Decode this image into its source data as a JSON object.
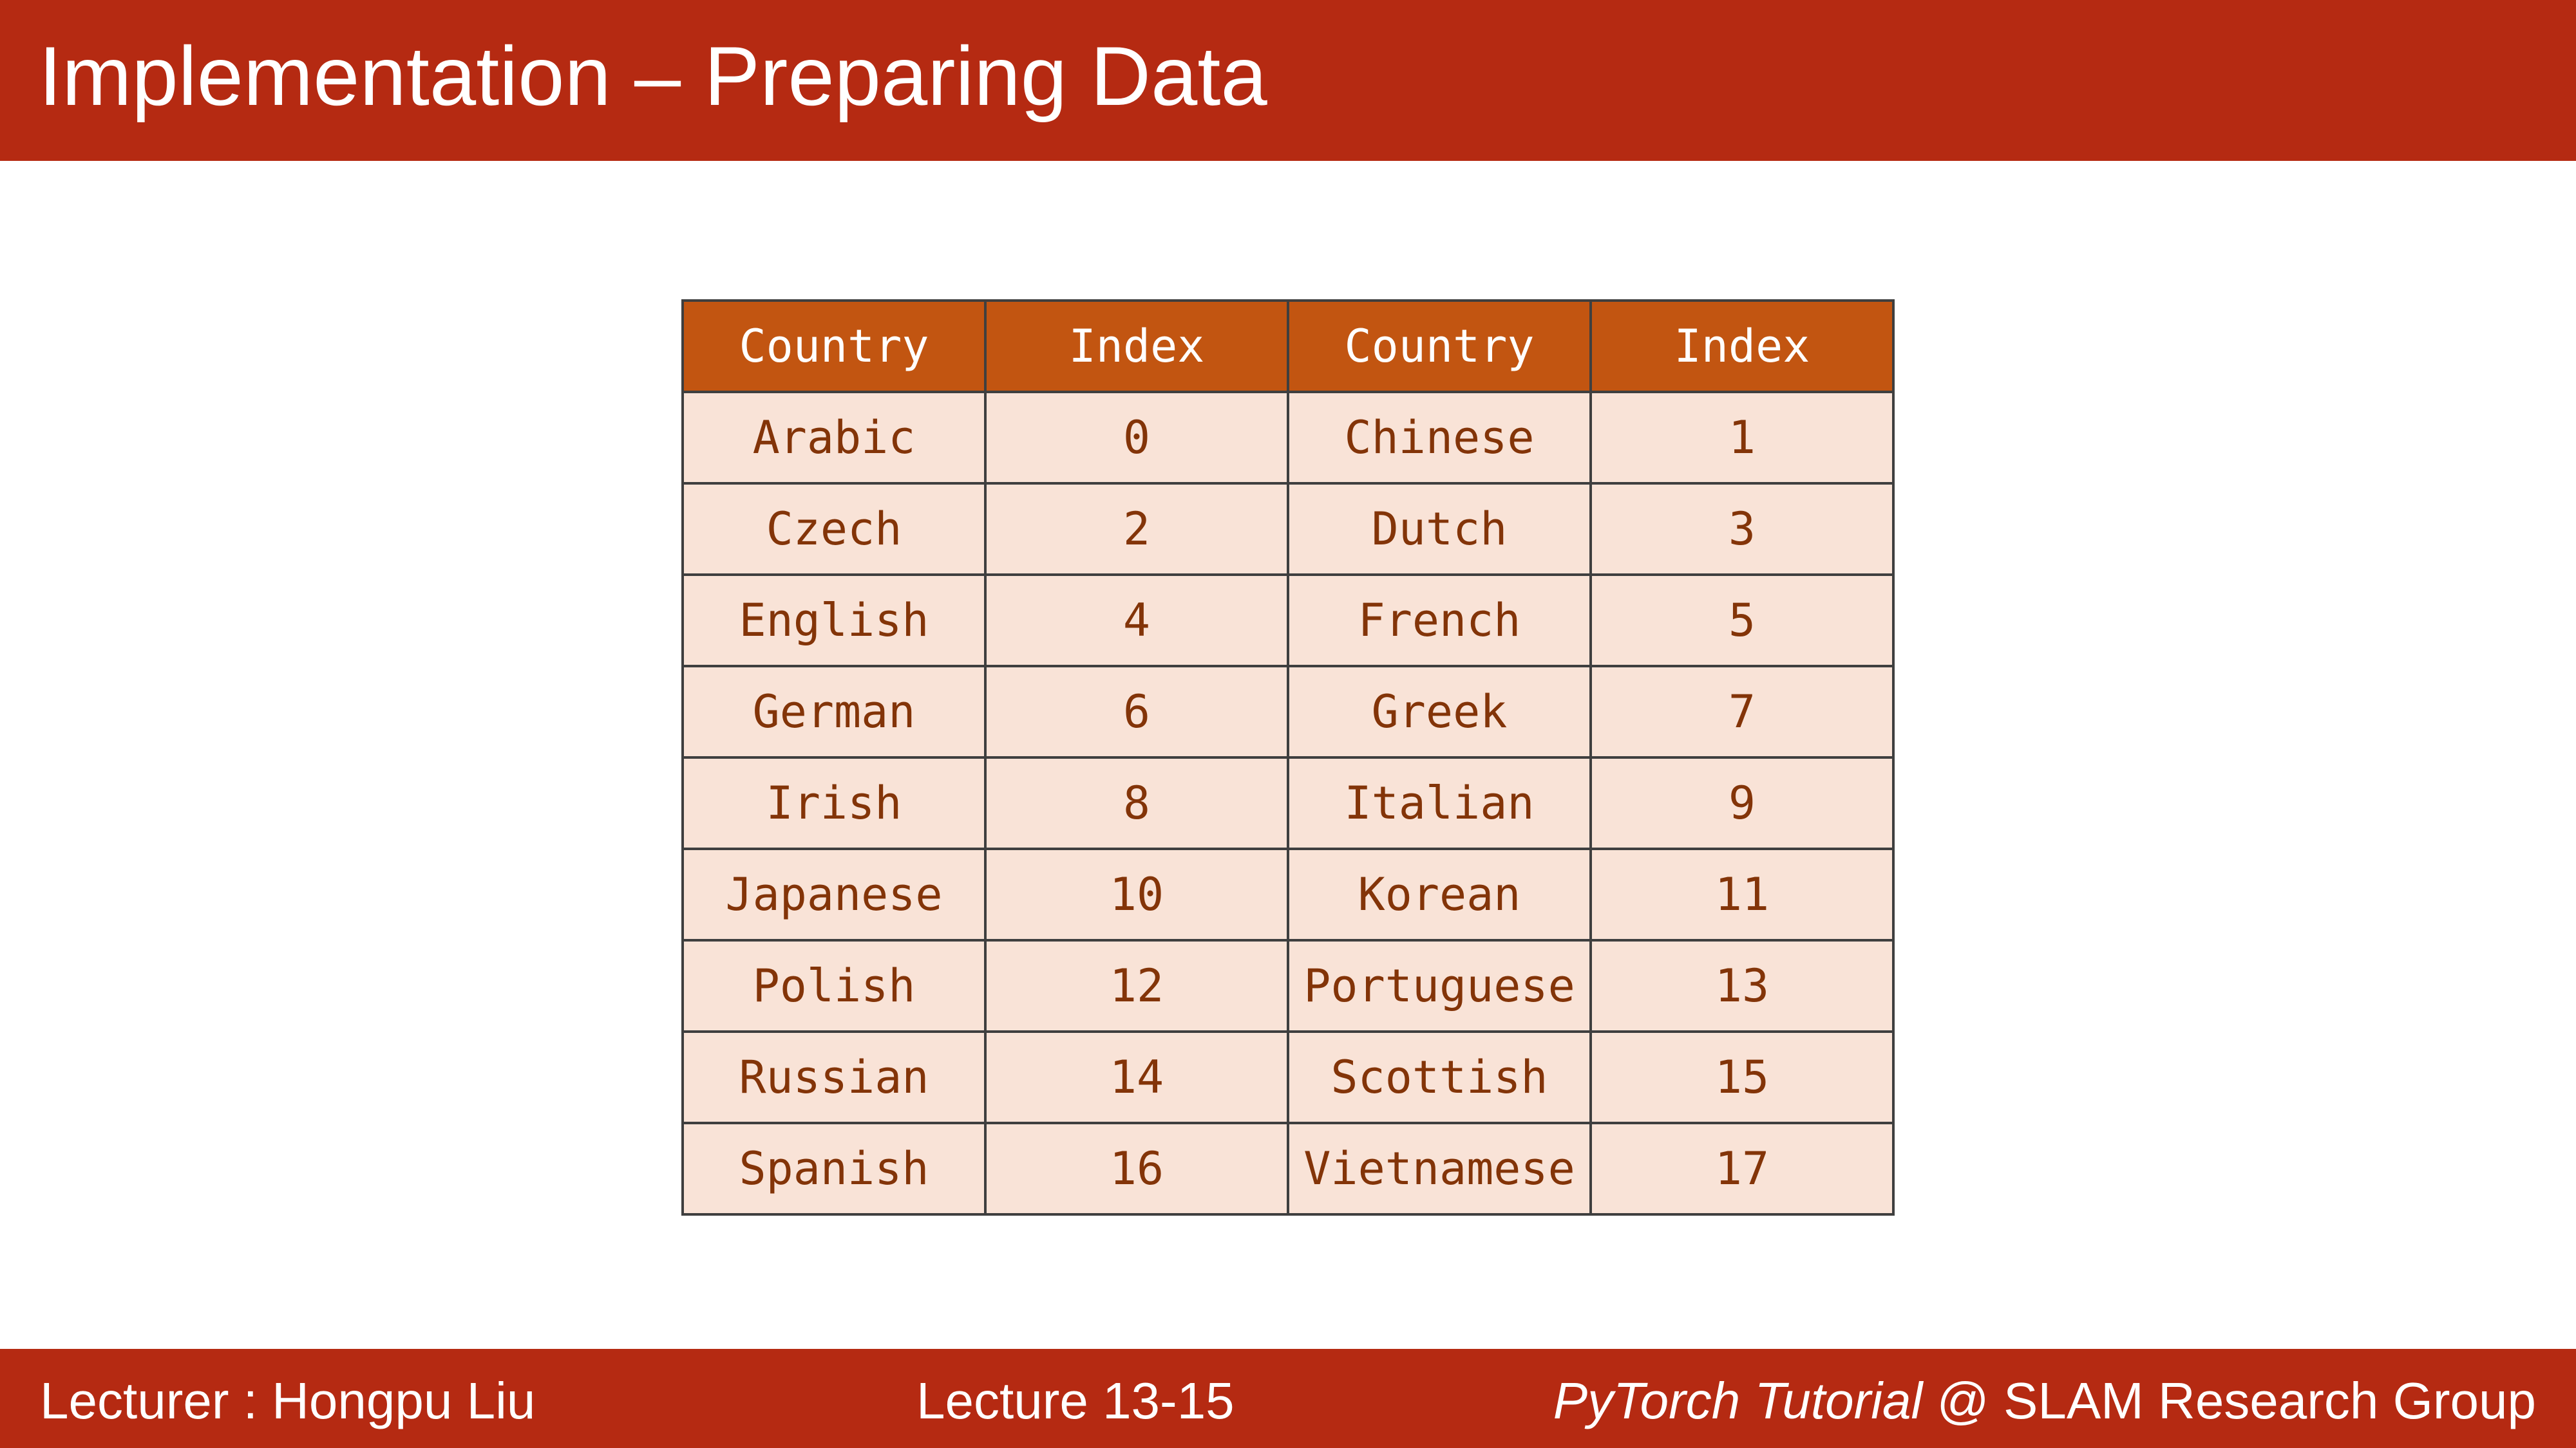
{
  "slide": {
    "title": "Implementation – Preparing Data"
  },
  "table": {
    "headers": [
      "Country",
      "Index",
      "Country",
      "Index"
    ],
    "rows": [
      [
        "Arabic",
        "0",
        "Chinese",
        "1"
      ],
      [
        "Czech",
        "2",
        "Dutch",
        "3"
      ],
      [
        "English",
        "4",
        "French",
        "5"
      ],
      [
        "German",
        "6",
        "Greek",
        "7"
      ],
      [
        "Irish",
        "8",
        "Italian",
        "9"
      ],
      [
        "Japanese",
        "10",
        "Korean",
        "11"
      ],
      [
        "Polish",
        "12",
        "Portuguese",
        "13"
      ],
      [
        "Russian",
        "14",
        "Scottish",
        "15"
      ],
      [
        "Spanish",
        "16",
        "Vietnamese",
        "17"
      ]
    ]
  },
  "footer": {
    "lecturer": "Lecturer : Hongpu Liu",
    "lecture": "Lecture 13-15",
    "course": "PyTorch Tutorial",
    "group": " @ SLAM Research Group"
  },
  "colors": {
    "title_bar": "#b52a12",
    "table_header": "#c25511",
    "table_cell": "#f9e3d7",
    "table_text": "#833408"
  }
}
